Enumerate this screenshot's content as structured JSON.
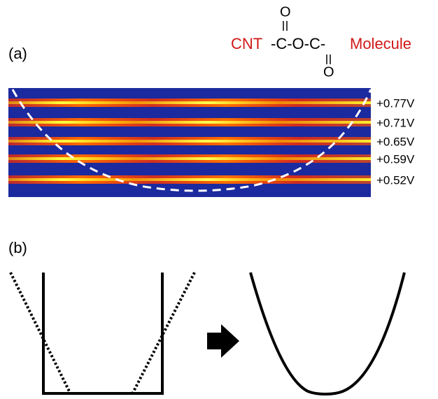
{
  "panel_a": {
    "label": "(a)",
    "formula": {
      "left": "CNT",
      "linker": "-C-O-C-",
      "top_oxygen": "O",
      "bottom_oxygen": "O",
      "right": "Molecule"
    },
    "voltages": [
      "+0.77V",
      "+0.71V",
      "+0.65V",
      "+0.59V",
      "+0.52V"
    ]
  },
  "panel_b": {
    "label": "(b)"
  }
}
